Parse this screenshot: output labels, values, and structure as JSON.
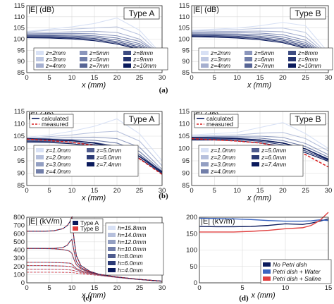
{
  "colors": {
    "blue_dark": "#0a1a5c",
    "blue_mid": "#3a64c0",
    "blue_light": "#a9bde8",
    "blue_pale": "#d8e1f5",
    "red": "#e04040",
    "red_dashed": "#d92020",
    "grid": "#d9d9d9"
  },
  "chart_data": [
    {
      "id": "a-typeA",
      "type": "line",
      "panel_caption": "(a)",
      "box_label": "Type A",
      "ylabel": "|E| (dB)",
      "xlabel": "x (mm)",
      "xlim": [
        0,
        30
      ],
      "ylim": [
        85,
        115
      ],
      "xticks": [
        0,
        5,
        10,
        15,
        20,
        25,
        30
      ],
      "yticks": [
        85,
        90,
        95,
        100,
        105,
        110,
        115
      ],
      "legend": [
        "z=2mm",
        "z=3mm",
        "z=4mm",
        "z=5mm",
        "z=6mm",
        "z=7mm",
        "z=8mm",
        "z=9mm",
        "z=10mm"
      ],
      "x": [
        0,
        5,
        10,
        15,
        20,
        25,
        30
      ],
      "series": [
        {
          "name": "z=2mm",
          "values": [
            103.5,
            104.5,
            105.5,
            107,
            109.5,
            104,
            93
          ]
        },
        {
          "name": "z=3mm",
          "values": [
            103.2,
            104,
            104.5,
            105,
            105.5,
            102,
            92.5
          ]
        },
        {
          "name": "z=4mm",
          "values": [
            102.8,
            103,
            103.3,
            103.5,
            103,
            100,
            92.5
          ]
        },
        {
          "name": "z=5mm",
          "values": [
            102.4,
            102.5,
            102.6,
            102.4,
            101.5,
            99,
            92.5
          ]
        },
        {
          "name": "z=6mm",
          "values": [
            102,
            102,
            101.9,
            101.5,
            100.5,
            98,
            92.4
          ]
        },
        {
          "name": "z=7mm",
          "values": [
            101.6,
            101.6,
            101.4,
            100.9,
            99.6,
            97.2,
            92.3
          ]
        },
        {
          "name": "z=8mm",
          "values": [
            101.2,
            101.2,
            100.9,
            100.3,
            98.9,
            96.5,
            92.2
          ]
        },
        {
          "name": "z=9mm",
          "values": [
            100.9,
            100.8,
            100.5,
            99.8,
            98.3,
            95.9,
            92.1
          ]
        },
        {
          "name": "z=10mm",
          "values": [
            100.6,
            100.5,
            100.1,
            99.3,
            97.8,
            95.4,
            92
          ]
        }
      ]
    },
    {
      "id": "a-typeB",
      "type": "line",
      "panel_caption": "(a)",
      "box_label": "Type B",
      "ylabel": "|E| (dB)",
      "xlabel": "x (mm)",
      "xlim": [
        0,
        30
      ],
      "ylim": [
        85,
        115
      ],
      "xticks": [
        0,
        5,
        10,
        15,
        20,
        25,
        30
      ],
      "yticks": [
        85,
        90,
        95,
        100,
        105,
        110,
        115
      ],
      "legend": [
        "z=2mm",
        "z=3mm",
        "z=4mm",
        "z=5mm",
        "z=6mm",
        "z=7mm",
        "z=8mm",
        "z=9mm",
        "z=10mm"
      ],
      "x": [
        0,
        5,
        10,
        15,
        20,
        25,
        30
      ],
      "series": [
        {
          "name": "z=2mm",
          "values": [
            104,
            104.5,
            105,
            106,
            107.5,
            106,
            94
          ]
        },
        {
          "name": "z=3mm",
          "values": [
            103.6,
            104,
            104.3,
            104.8,
            105,
            103,
            93
          ]
        },
        {
          "name": "z=4mm",
          "values": [
            103.2,
            103.4,
            103.5,
            103.6,
            103.3,
            101,
            92.5
          ]
        },
        {
          "name": "z=5mm",
          "values": [
            102.8,
            102.9,
            102.9,
            102.7,
            102,
            99.5,
            92.3
          ]
        },
        {
          "name": "z=6mm",
          "values": [
            102.4,
            102.4,
            102.3,
            102,
            101,
            98.5,
            92.2
          ]
        },
        {
          "name": "z=7mm",
          "values": [
            102,
            102,
            101.8,
            101.3,
            100.2,
            97.7,
            92.1
          ]
        },
        {
          "name": "z=8mm",
          "values": [
            101.7,
            101.6,
            101.3,
            100.7,
            99.5,
            97,
            92
          ]
        },
        {
          "name": "z=9mm",
          "values": [
            101.4,
            101.2,
            100.9,
            100.2,
            98.9,
            96.4,
            91.9
          ]
        },
        {
          "name": "z=10mm",
          "values": [
            101.1,
            100.9,
            100.5,
            99.7,
            98.4,
            95.9,
            91.8
          ]
        }
      ]
    },
    {
      "id": "b-typeA",
      "type": "line",
      "panel_caption": "(b)",
      "box_label": "Type A",
      "ylabel": "|E| (dB)",
      "xlabel": "x (mm)",
      "xlim": [
        0,
        30
      ],
      "ylim": [
        85,
        115
      ],
      "xticks": [
        0,
        5,
        10,
        15,
        20,
        25,
        30
      ],
      "yticks": [
        85,
        90,
        95,
        100,
        105,
        110,
        115
      ],
      "top_legend": [
        "calculated",
        "measured"
      ],
      "legend": [
        "z=1.0mm",
        "z=2.0mm",
        "z=3.0mm",
        "z=4.0mm",
        "z=5.0mm",
        "z=6.0mm",
        "z=7.4mm"
      ],
      "x": [
        0,
        5,
        10,
        15,
        20,
        25,
        30
      ],
      "series": [
        {
          "name": "z=1.0mm",
          "values": [
            104.5,
            105.5,
            107,
            109,
            112,
            106,
            95
          ]
        },
        {
          "name": "z=2.0mm",
          "values": [
            104.2,
            104.8,
            105.5,
            106.5,
            107,
            103,
            93
          ]
        },
        {
          "name": "z=3.0mm",
          "values": [
            103.8,
            104.1,
            104.4,
            104.6,
            104,
            100.5,
            91.5
          ]
        },
        {
          "name": "z=4.0mm",
          "values": [
            103.5,
            103.6,
            103.6,
            103.3,
            102.2,
            98.8,
            90.8
          ]
        },
        {
          "name": "z=5.0mm",
          "values": [
            103.2,
            103.2,
            103,
            102.4,
            100.9,
            97.6,
            90.4
          ]
        },
        {
          "name": "z=6.0mm",
          "values": [
            102.9,
            102.8,
            102.5,
            101.6,
            100,
            96.7,
            90.1
          ]
        },
        {
          "name": "z=7.4mm",
          "values": [
            102.5,
            102.4,
            101.9,
            100.9,
            99.1,
            96,
            89.8
          ]
        },
        {
          "name": "calculated",
          "values": [
            104,
            103.7,
            103.2,
            102.2,
            100.2,
            96.8,
            90.5
          ]
        },
        {
          "name": "measured",
          "values": [
            103.8,
            103.2,
            102.5,
            101.2,
            98.9,
            95.8,
            89.5
          ]
        }
      ]
    },
    {
      "id": "b-typeB",
      "type": "line",
      "panel_caption": "(b)",
      "box_label": "Type B",
      "ylabel": "|E| (dB)",
      "xlabel": "x (mm)",
      "xlim": [
        0,
        30
      ],
      "ylim": [
        85,
        115
      ],
      "xticks": [
        0,
        5,
        10,
        15,
        20,
        25,
        30
      ],
      "yticks": [
        85,
        90,
        95,
        100,
        105,
        110,
        115
      ],
      "top_legend": [
        "calculated",
        "measured"
      ],
      "legend": [
        "z=1.0mm",
        "z=2.0mm",
        "z=3.0mm",
        "z=4.0mm",
        "z=5.0mm",
        "z=6.0mm",
        "z=7.4mm"
      ],
      "x": [
        0,
        5,
        10,
        15,
        20,
        25,
        30
      ],
      "series": [
        {
          "name": "z=1.0mm",
          "values": [
            105.5,
            106,
            106.5,
            108.5,
            110.5,
            106,
            100
          ]
        },
        {
          "name": "z=2.0mm",
          "values": [
            105,
            105.3,
            105.5,
            106.2,
            106.5,
            104,
            99
          ]
        },
        {
          "name": "z=3.0mm",
          "values": [
            104.6,
            104.8,
            104.9,
            105,
            104.5,
            102,
            97.5
          ]
        },
        {
          "name": "z=4.0mm",
          "values": [
            104.3,
            104.4,
            104.4,
            104.2,
            103.2,
            100.8,
            96.5
          ]
        },
        {
          "name": "z=5.0mm",
          "values": [
            104,
            104.1,
            104,
            103.5,
            102.3,
            99.8,
            95.8
          ]
        },
        {
          "name": "z=6.0mm",
          "values": [
            103.7,
            103.8,
            103.6,
            102.9,
            101.5,
            99,
            95.2
          ]
        },
        {
          "name": "z=7.4mm",
          "values": [
            103.4,
            103.4,
            103.1,
            102.3,
            100.8,
            98.3,
            94.8
          ]
        },
        {
          "name": "calculated",
          "values": [
            104.5,
            104.3,
            104,
            103.4,
            102.2,
            99.8,
            95.5
          ]
        },
        {
          "name": "measured",
          "values": [
            104,
            103.5,
            103,
            102.2,
            100.5,
            97.5,
            92.5
          ]
        }
      ]
    },
    {
      "id": "c",
      "type": "line",
      "panel_caption": "(c)",
      "ylabel": "|E| (kV/m)",
      "xlabel": "x (mm)",
      "xlim": [
        0,
        30
      ],
      "ylim": [
        0,
        800
      ],
      "xticks": [
        0,
        5,
        10,
        15,
        20,
        25,
        30
      ],
      "yticks": [
        0,
        100,
        200,
        300,
        400,
        500,
        600,
        700,
        800
      ],
      "type_legend": [
        "Type A",
        "Type B"
      ],
      "legend": [
        "h=15.8mm",
        "h=14.0mm",
        "h=12.0mm",
        "h=10.0mm",
        "h=8.0mm",
        "h=6.0mm",
        "h=4.0mm"
      ],
      "x": [
        0,
        2,
        4,
        6,
        8,
        9,
        9.5,
        10,
        10.5,
        11,
        12,
        14,
        16,
        20,
        25,
        30
      ],
      "series": [
        {
          "name": "h=15.8mm",
          "values": [
            130,
            130,
            130,
            129,
            128,
            127,
            126,
            125,
            122,
            118,
            112,
            100,
            90,
            65,
            40,
            20
          ]
        },
        {
          "name": "h=14.0mm",
          "values": [
            165,
            165,
            165,
            164,
            162,
            160,
            158,
            155,
            148,
            140,
            125,
            108,
            93,
            66,
            40,
            20
          ]
        },
        {
          "name": "h=12.0mm",
          "values": [
            210,
            210,
            210,
            208,
            205,
            202,
            200,
            195,
            180,
            160,
            138,
            112,
            95,
            67,
            40,
            20
          ]
        },
        {
          "name": "h=10.0mm",
          "values": [
            250,
            250,
            250,
            248,
            245,
            242,
            240,
            230,
            200,
            175,
            148,
            116,
            96,
            68,
            40,
            20
          ]
        },
        {
          "name": "h=8.0mm",
          "values": [
            420,
            420,
            418,
            415,
            405,
            395,
            385,
            360,
            280,
            220,
            170,
            125,
            100,
            70,
            41,
            20
          ]
        },
        {
          "name": "h=6.0mm",
          "values": [
            420,
            420,
            420,
            420,
            430,
            460,
            500,
            530,
            380,
            260,
            185,
            130,
            102,
            71,
            41,
            20
          ]
        },
        {
          "name": "h=4.0mm",
          "values": [
            630,
            630,
            630,
            635,
            660,
            700,
            740,
            800,
            520,
            330,
            210,
            140,
            105,
            72,
            42,
            21
          ]
        }
      ]
    },
    {
      "id": "d",
      "type": "line",
      "panel_caption": "(d)",
      "ylabel": "|E| (kV/m)",
      "xlabel": "x (mm)",
      "xlim": [
        0,
        15
      ],
      "ylim": [
        0,
        200
      ],
      "xticks": [
        0,
        5,
        10,
        15
      ],
      "yticks": [
        0,
        50,
        100,
        150,
        200
      ],
      "legend": [
        "No Petri dish",
        "Petri dish + Water",
        "Petri dish + Saline"
      ],
      "x": [
        0,
        2,
        4,
        6,
        8,
        10,
        12,
        13,
        14,
        15
      ],
      "series": [
        {
          "name": "No Petri dish",
          "values": [
            172,
            171,
            171,
            172,
            175,
            180,
            178,
            182,
            188,
            195
          ]
        },
        {
          "name": "Petri dish + Water",
          "values": [
            197,
            196,
            195,
            193,
            190,
            188,
            188,
            189,
            192,
            190
          ]
        },
        {
          "name": "Petri dish + Saline",
          "values": [
            155,
            155,
            155,
            157,
            160,
            165,
            168,
            175,
            190,
            215
          ]
        }
      ]
    }
  ],
  "captions": {
    "a": "(a)",
    "b": "(b)",
    "c": "(c)",
    "d": "(d)"
  }
}
